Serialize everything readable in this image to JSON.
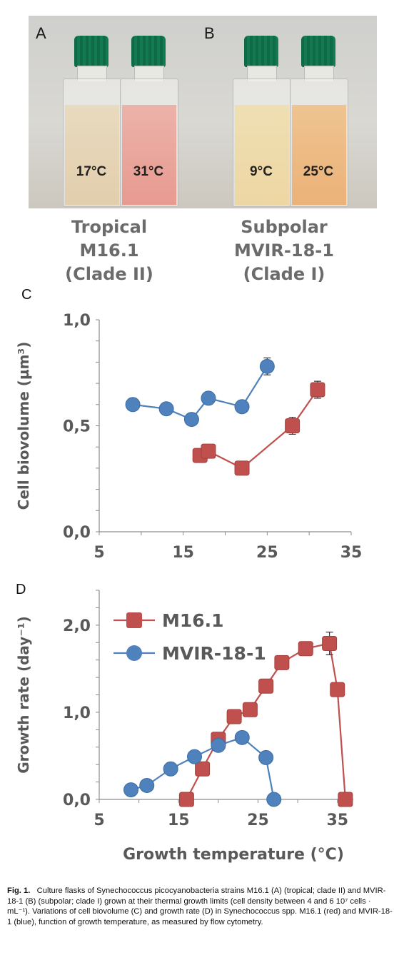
{
  "photos": {
    "A": {
      "letter": "A",
      "temps": [
        "17°C",
        "31°C"
      ],
      "strain": [
        "Tropical",
        "M16.1",
        "(Clade II)"
      ]
    },
    "B": {
      "letter": "B",
      "temps": [
        "9°C",
        "25°C"
      ],
      "strain": [
        "Subpolar",
        "MVIR-18-1",
        "(Clade I)"
      ]
    }
  },
  "colors": {
    "red": "#c0504d",
    "blue": "#4f81bd",
    "cap_green": "#137a52",
    "axis_text": "#595959"
  },
  "chart_data": [
    {
      "panel": "C",
      "type": "line",
      "ylabel": "Cell biovolume (µm³)",
      "xlabel": "",
      "xlim": [
        5,
        35
      ],
      "ylim": [
        0,
        1
      ],
      "xticks": [
        "5",
        "15",
        "25",
        "35"
      ],
      "yticks": [
        "0,0",
        "0,5",
        "1,0"
      ],
      "series": [
        {
          "name": "MVIR-18-1",
          "color": "#4f81bd",
          "marker": "circle",
          "x": [
            9,
            13,
            16,
            18,
            22,
            25
          ],
          "y": [
            0.6,
            0.58,
            0.53,
            0.63,
            0.59,
            0.78
          ],
          "err": [
            0,
            0,
            0,
            0,
            0,
            0.04
          ]
        },
        {
          "name": "M16.1",
          "color": "#c0504d",
          "marker": "square",
          "x": [
            17,
            18,
            22,
            28,
            31
          ],
          "y": [
            0.36,
            0.38,
            0.3,
            0.5,
            0.67
          ],
          "err": [
            0,
            0,
            0,
            0.04,
            0.04
          ]
        }
      ]
    },
    {
      "panel": "D",
      "type": "line",
      "ylabel": "Growth rate (day⁻¹)",
      "xlabel": "Growth temperature (°C)",
      "xlim": [
        5,
        37
      ],
      "ylim": [
        0,
        2.4
      ],
      "xticks": [
        "5",
        "15",
        "25",
        "35"
      ],
      "xtick_values": [
        5,
        15,
        25,
        35
      ],
      "yticks": [
        "0,0",
        "1,0",
        "2,0"
      ],
      "legend": "top-left",
      "series": [
        {
          "name": "M16.1",
          "color": "#c0504d",
          "marker": "square",
          "x": [
            16,
            18,
            20,
            22,
            24,
            26,
            28,
            31,
            34,
            35,
            36
          ],
          "y": [
            0.0,
            0.35,
            0.69,
            0.95,
            1.03,
            1.3,
            1.57,
            1.73,
            1.79,
            1.26,
            0.0
          ],
          "err": [
            0,
            0,
            0,
            0,
            0,
            0,
            0,
            0,
            0.13,
            0,
            0
          ]
        },
        {
          "name": "MVIR-18-1",
          "color": "#4f81bd",
          "marker": "circle",
          "x": [
            9,
            11,
            14,
            17,
            20,
            23,
            26,
            27
          ],
          "y": [
            0.11,
            0.16,
            0.35,
            0.49,
            0.62,
            0.71,
            0.48,
            0.0
          ],
          "err": [
            0,
            0,
            0,
            0,
            0,
            0,
            0,
            0
          ]
        }
      ]
    }
  ],
  "caption": {
    "fig": "Fig. 1.",
    "text": "Culture flasks of Synechococcus picocyanobacteria strains M16.1 (A) (tropical; clade II) and MVIR-18-1 (B) (subpolar; clade I) grown at their thermal growth limits (cell density between 4 and 6 10⁷ cells · mL⁻¹). Variations of cell biovolume (C) and growth rate (D) in Synechococcus spp. M16.1 (red) and MVIR-18-1 (blue), function of growth temperature, as measured by flow cytometry."
  }
}
